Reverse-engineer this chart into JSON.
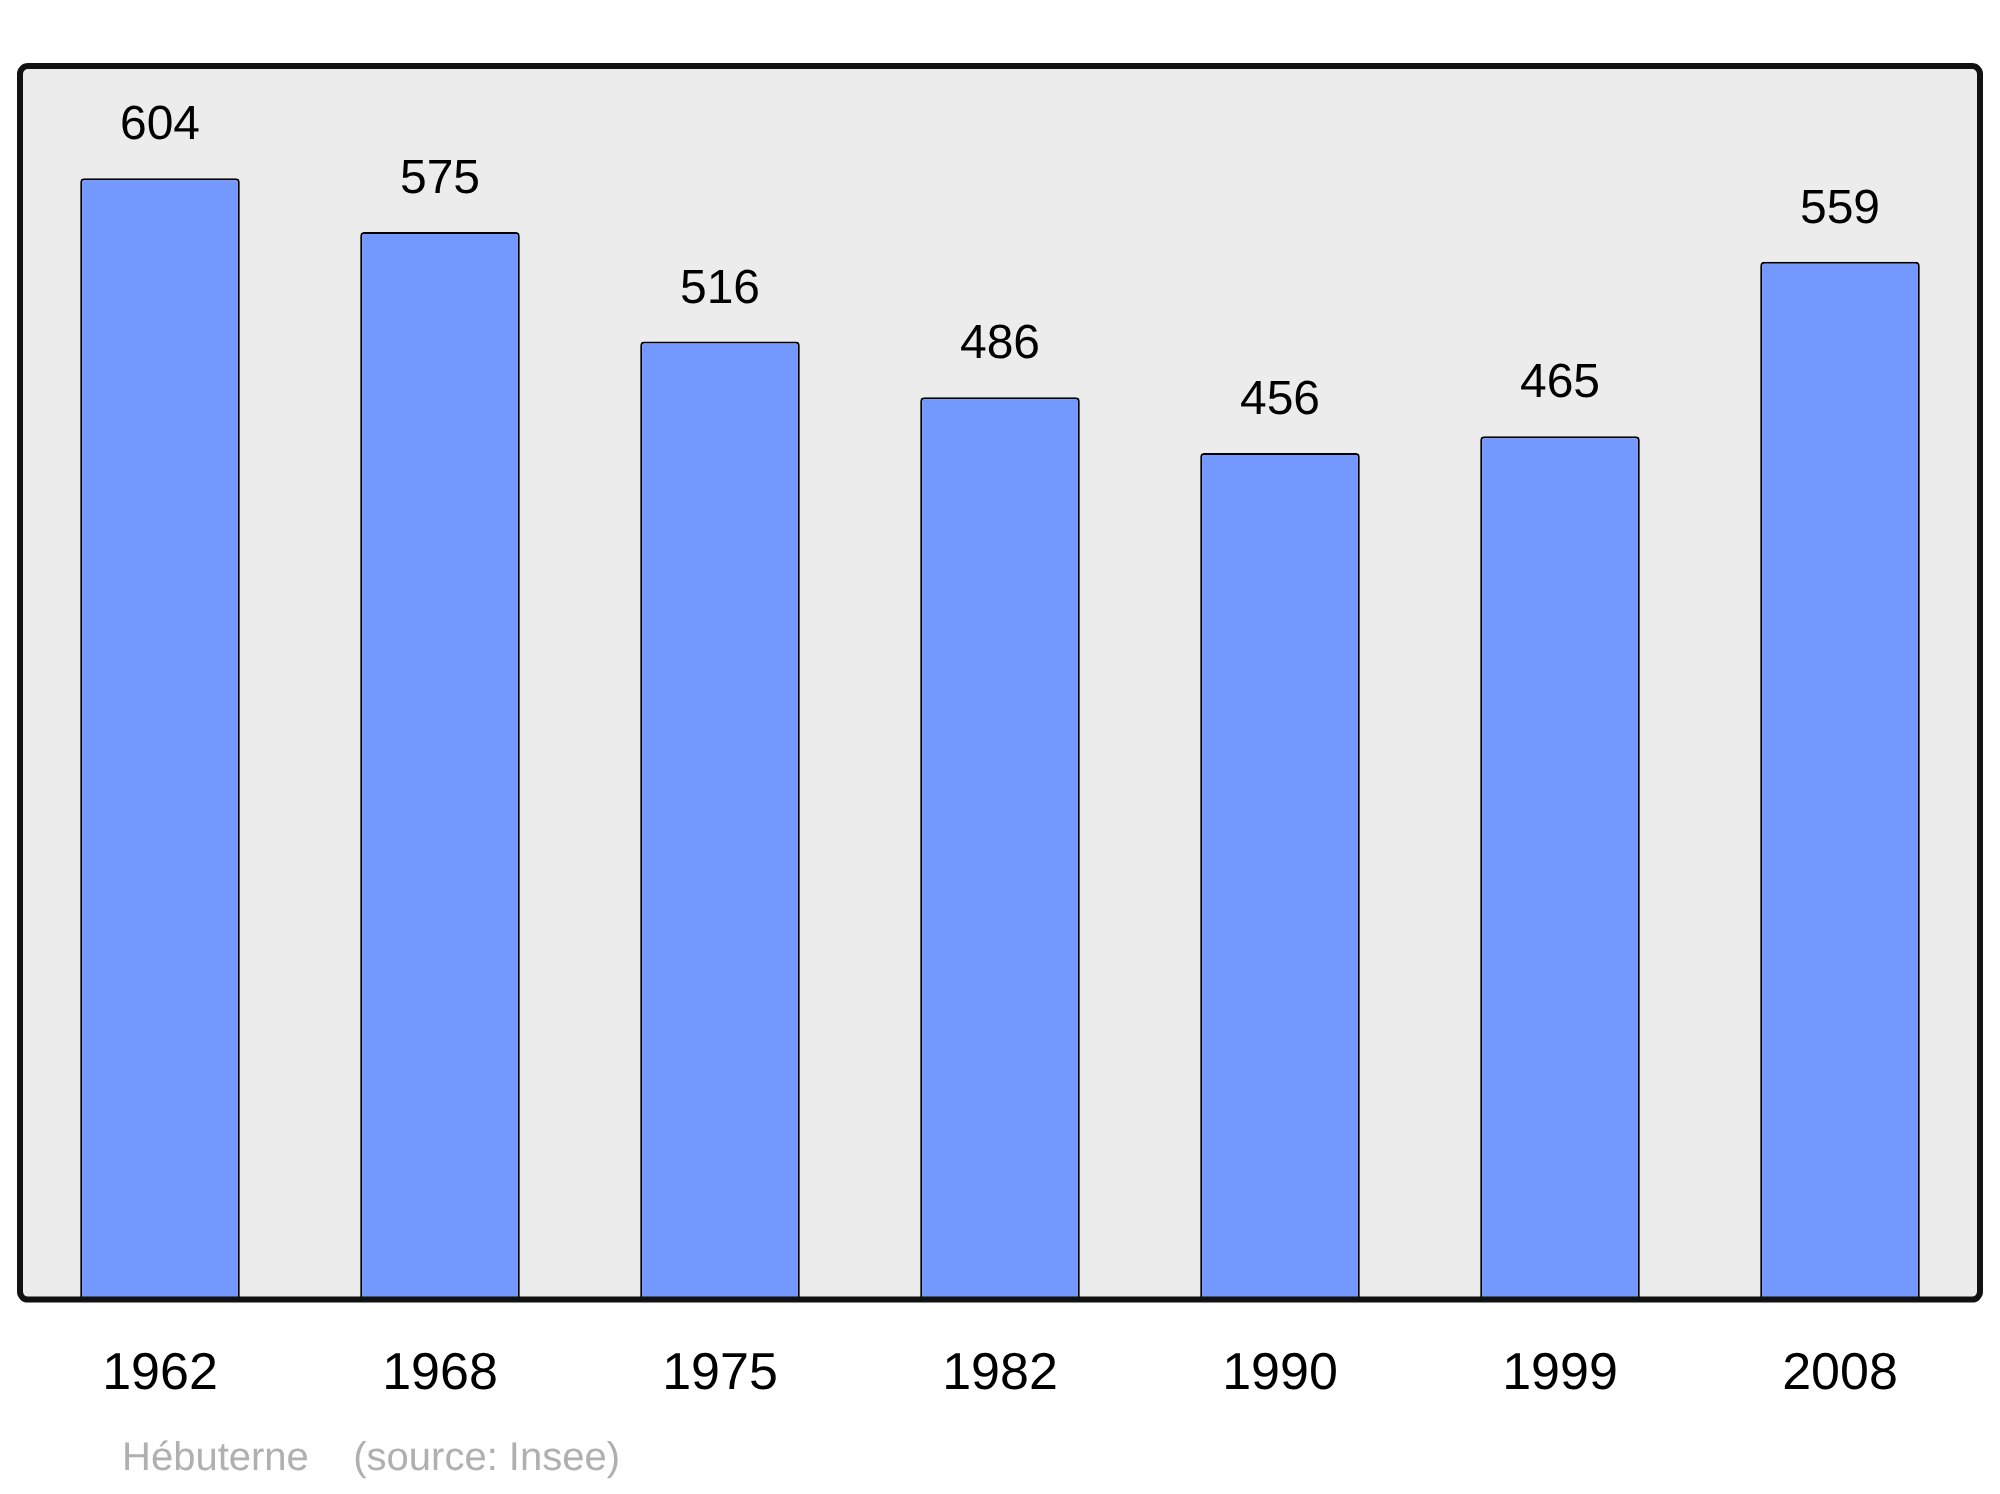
{
  "chart_data": {
    "type": "bar",
    "categories": [
      "1962",
      "1968",
      "1975",
      "1982",
      "1990",
      "1999",
      "2008"
    ],
    "values": [
      604,
      575,
      516,
      486,
      456,
      465,
      559
    ],
    "color": "#7399ff",
    "data_labels": true,
    "annotations": [
      "Hébuterne    (source: Insee)"
    ]
  }
}
